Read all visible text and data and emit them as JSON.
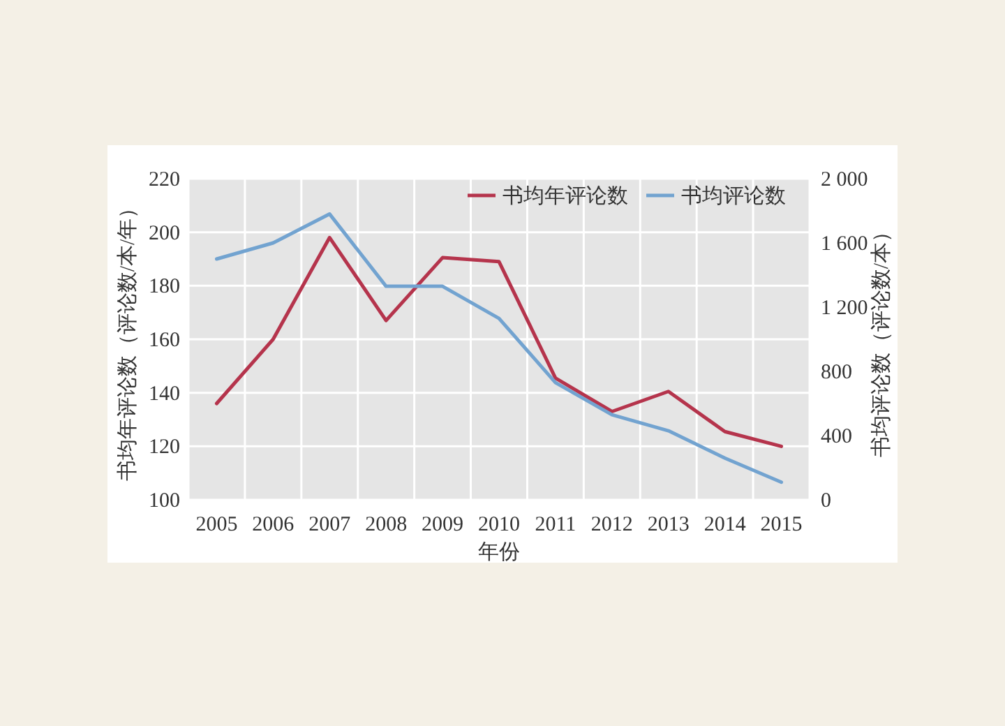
{
  "chart_data": {
    "type": "line",
    "xlabel": "年份",
    "ylabel": "书均年评论数（评论数/本/年）",
    "y2label": "书均评论数（评论数/本）",
    "categories": [
      "2005",
      "2006",
      "2007",
      "2008",
      "2009",
      "2010",
      "2011",
      "2012",
      "2013",
      "2014",
      "2015"
    ],
    "series": [
      {
        "name": "书均年评论数",
        "color": "#b5344c",
        "values": [
          136,
          160,
          198,
          167,
          190.5,
          189,
          145.5,
          133,
          140.5,
          125.5,
          120
        ]
      },
      {
        "name": "书均评论数",
        "color": "#72a3d0",
        "axis": "y2",
        "values": [
          1500,
          1600,
          1780,
          1330,
          1330,
          1130,
          730,
          530,
          430,
          260,
          110
        ]
      }
    ],
    "ylim": [
      100,
      220
    ],
    "yticks": [
      100,
      120,
      140,
      160,
      180,
      200,
      220
    ],
    "y2lim": [
      0,
      2000
    ],
    "y2ticks": [
      {
        "value": 0,
        "label": "0"
      },
      {
        "value": 400,
        "label": "400"
      },
      {
        "value": 800,
        "label": "800"
      },
      {
        "value": 1200,
        "label": "1 200"
      },
      {
        "value": 1600,
        "label": "1 600"
      },
      {
        "value": 2000,
        "label": "2 000"
      }
    ],
    "grid": true,
    "legend": "top right",
    "marker": "none",
    "line_style": "solid"
  }
}
